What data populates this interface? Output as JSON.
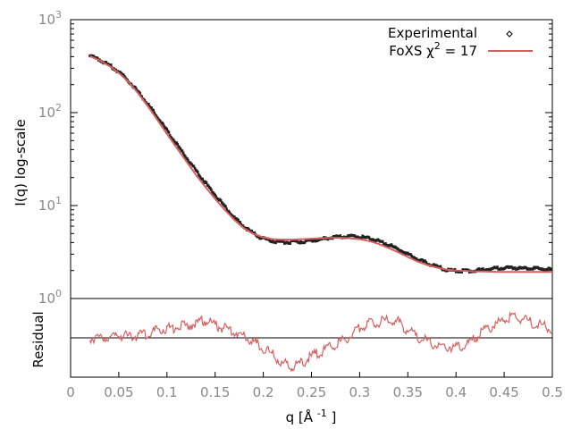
{
  "chart_data": [
    {
      "panel": "main",
      "type": "scatter",
      "yscale": "log",
      "xlim": [
        0,
        0.5
      ],
      "ylim": [
        1,
        1000
      ],
      "ylabel": "I(q) log-scale",
      "ytick_labels": [
        {
          "value": 1,
          "base": "10",
          "exp": "0"
        },
        {
          "value": 10,
          "base": "10",
          "exp": "1"
        },
        {
          "value": 100,
          "base": "10",
          "exp": "2"
        },
        {
          "value": 1000,
          "base": "10",
          "exp": "3"
        }
      ],
      "legend_position": "top-right",
      "legend": {
        "experimental_label": "Experimental",
        "fit_prefix": "FoXS χ",
        "fit_sup": "2",
        "fit_suffix": " = 17"
      },
      "series": [
        {
          "name": "Experimental",
          "color": "#000000",
          "marker": "point",
          "x": [
            0.02,
            0.03,
            0.04,
            0.05,
            0.06,
            0.07,
            0.08,
            0.09,
            0.1,
            0.11,
            0.12,
            0.13,
            0.14,
            0.15,
            0.16,
            0.17,
            0.18,
            0.19,
            0.2,
            0.21,
            0.22,
            0.23,
            0.24,
            0.25,
            0.26,
            0.27,
            0.28,
            0.29,
            0.3,
            0.31,
            0.32,
            0.33,
            0.34,
            0.35,
            0.36,
            0.37,
            0.38,
            0.39,
            0.4,
            0.41,
            0.42,
            0.43,
            0.44,
            0.45,
            0.46,
            0.47,
            0.48,
            0.49,
            0.5
          ],
          "y": [
            410,
            370,
            325,
            275,
            220,
            168,
            124,
            90,
            64,
            46,
            33,
            24,
            17.6,
            13.0,
            9.7,
            7.4,
            5.9,
            5.0,
            4.4,
            4.15,
            4.05,
            4.05,
            4.1,
            4.2,
            4.35,
            4.5,
            4.6,
            4.65,
            4.6,
            4.45,
            4.15,
            3.8,
            3.4,
            3.0,
            2.65,
            2.4,
            2.2,
            2.05,
            1.98,
            1.98,
            2.0,
            2.05,
            2.1,
            2.15,
            2.15,
            2.1,
            2.1,
            2.08,
            2.05
          ]
        },
        {
          "name": "FoXS χ2 = 17",
          "color": "#d95f5f",
          "marker": "line",
          "x": [
            0.02,
            0.03,
            0.04,
            0.05,
            0.06,
            0.07,
            0.08,
            0.09,
            0.1,
            0.11,
            0.12,
            0.13,
            0.14,
            0.15,
            0.16,
            0.17,
            0.18,
            0.19,
            0.2,
            0.21,
            0.22,
            0.23,
            0.24,
            0.25,
            0.26,
            0.27,
            0.28,
            0.29,
            0.3,
            0.31,
            0.32,
            0.33,
            0.34,
            0.35,
            0.36,
            0.37,
            0.38,
            0.39,
            0.4,
            0.41,
            0.42,
            0.43,
            0.44,
            0.45,
            0.46,
            0.47,
            0.48,
            0.49,
            0.5
          ],
          "y": [
            405,
            365,
            318,
            268,
            215,
            162,
            118,
            84,
            59,
            42,
            30,
            21.5,
            15.8,
            11.8,
            9.0,
            7.0,
            5.7,
            4.95,
            4.55,
            4.35,
            4.3,
            4.3,
            4.35,
            4.4,
            4.45,
            4.5,
            4.5,
            4.45,
            4.35,
            4.15,
            3.85,
            3.5,
            3.15,
            2.8,
            2.5,
            2.3,
            2.15,
            2.05,
            2.0,
            1.98,
            1.96,
            1.95,
            1.94,
            1.93,
            1.93,
            1.93,
            1.93,
            1.93,
            1.93
          ]
        }
      ]
    },
    {
      "panel": "residual",
      "type": "line",
      "xlim": [
        0,
        0.5
      ],
      "xlabel_prefix": "q [Å ",
      "xlabel_sup": "-1",
      "xlabel_suffix": " ]",
      "ylabel": "Residual",
      "xtick_labels": [
        "0",
        "0.05",
        "0.1",
        "0.15",
        "0.2",
        "0.25",
        "0.3",
        "0.35",
        "0.4",
        "0.45",
        "0.5"
      ],
      "xtick_values": [
        0,
        0.05,
        0.1,
        0.15,
        0.2,
        0.25,
        0.3,
        0.35,
        0.4,
        0.45,
        0.5
      ],
      "ylim": [
        -1.2,
        1.2
      ],
      "zero_line": 0,
      "series": [
        {
          "color": "#d95f5f",
          "x": [
            0.02,
            0.03,
            0.04,
            0.05,
            0.06,
            0.07,
            0.08,
            0.09,
            0.1,
            0.11,
            0.12,
            0.13,
            0.14,
            0.15,
            0.16,
            0.17,
            0.18,
            0.19,
            0.2,
            0.21,
            0.22,
            0.23,
            0.24,
            0.25,
            0.26,
            0.27,
            0.28,
            0.29,
            0.3,
            0.31,
            0.32,
            0.33,
            0.34,
            0.35,
            0.36,
            0.37,
            0.38,
            0.39,
            0.4,
            0.41,
            0.42,
            0.43,
            0.44,
            0.45,
            0.46,
            0.47,
            0.48,
            0.49,
            0.5
          ],
          "y": [
            -0.1,
            -0.05,
            -0.05,
            0.0,
            -0.05,
            0.0,
            0.05,
            0.15,
            0.2,
            0.25,
            0.3,
            0.35,
            0.45,
            0.3,
            0.2,
            0.1,
            -0.05,
            -0.2,
            -0.4,
            -0.6,
            -0.85,
            -0.95,
            -0.85,
            -0.65,
            -0.5,
            -0.35,
            -0.2,
            -0.05,
            0.2,
            0.35,
            0.4,
            0.45,
            0.4,
            0.15,
            -0.05,
            -0.2,
            -0.3,
            -0.35,
            -0.35,
            -0.3,
            -0.1,
            0.15,
            0.3,
            0.45,
            0.55,
            0.5,
            0.35,
            0.3,
            0.2
          ]
        }
      ]
    }
  ]
}
